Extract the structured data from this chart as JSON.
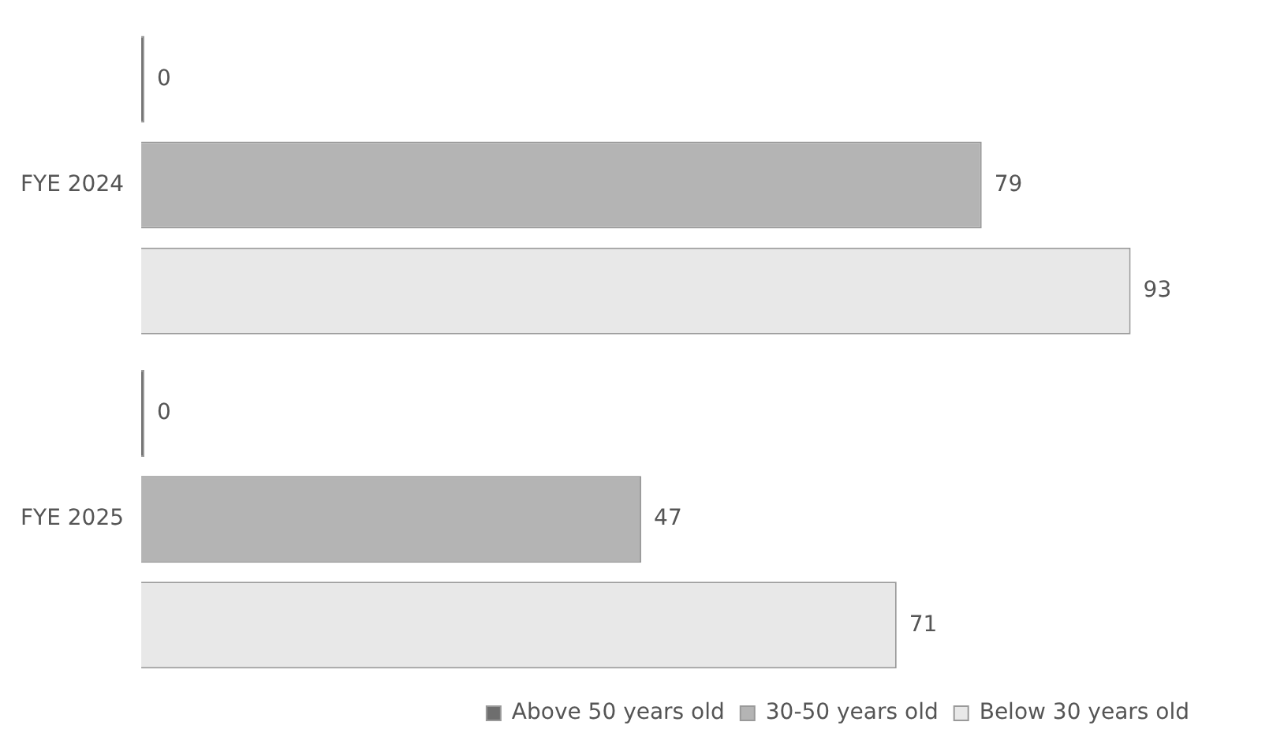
{
  "chart_data": {
    "type": "bar",
    "orientation": "horizontal",
    "categories": [
      "FYE 2024",
      "FYE 2025"
    ],
    "series": [
      {
        "name": "Above 50 years old",
        "color": "#6e6e6e",
        "values": [
          0,
          0
        ]
      },
      {
        "name": "30-50 years old",
        "color": "#b4b4b4",
        "values": [
          79,
          47
        ]
      },
      {
        "name": "Below 30 years old",
        "color": "#e8e8e8",
        "values": [
          93,
          71
        ]
      }
    ],
    "data_labels": true,
    "legend": "bottom right",
    "grid": false,
    "tick_labels": "y"
  }
}
